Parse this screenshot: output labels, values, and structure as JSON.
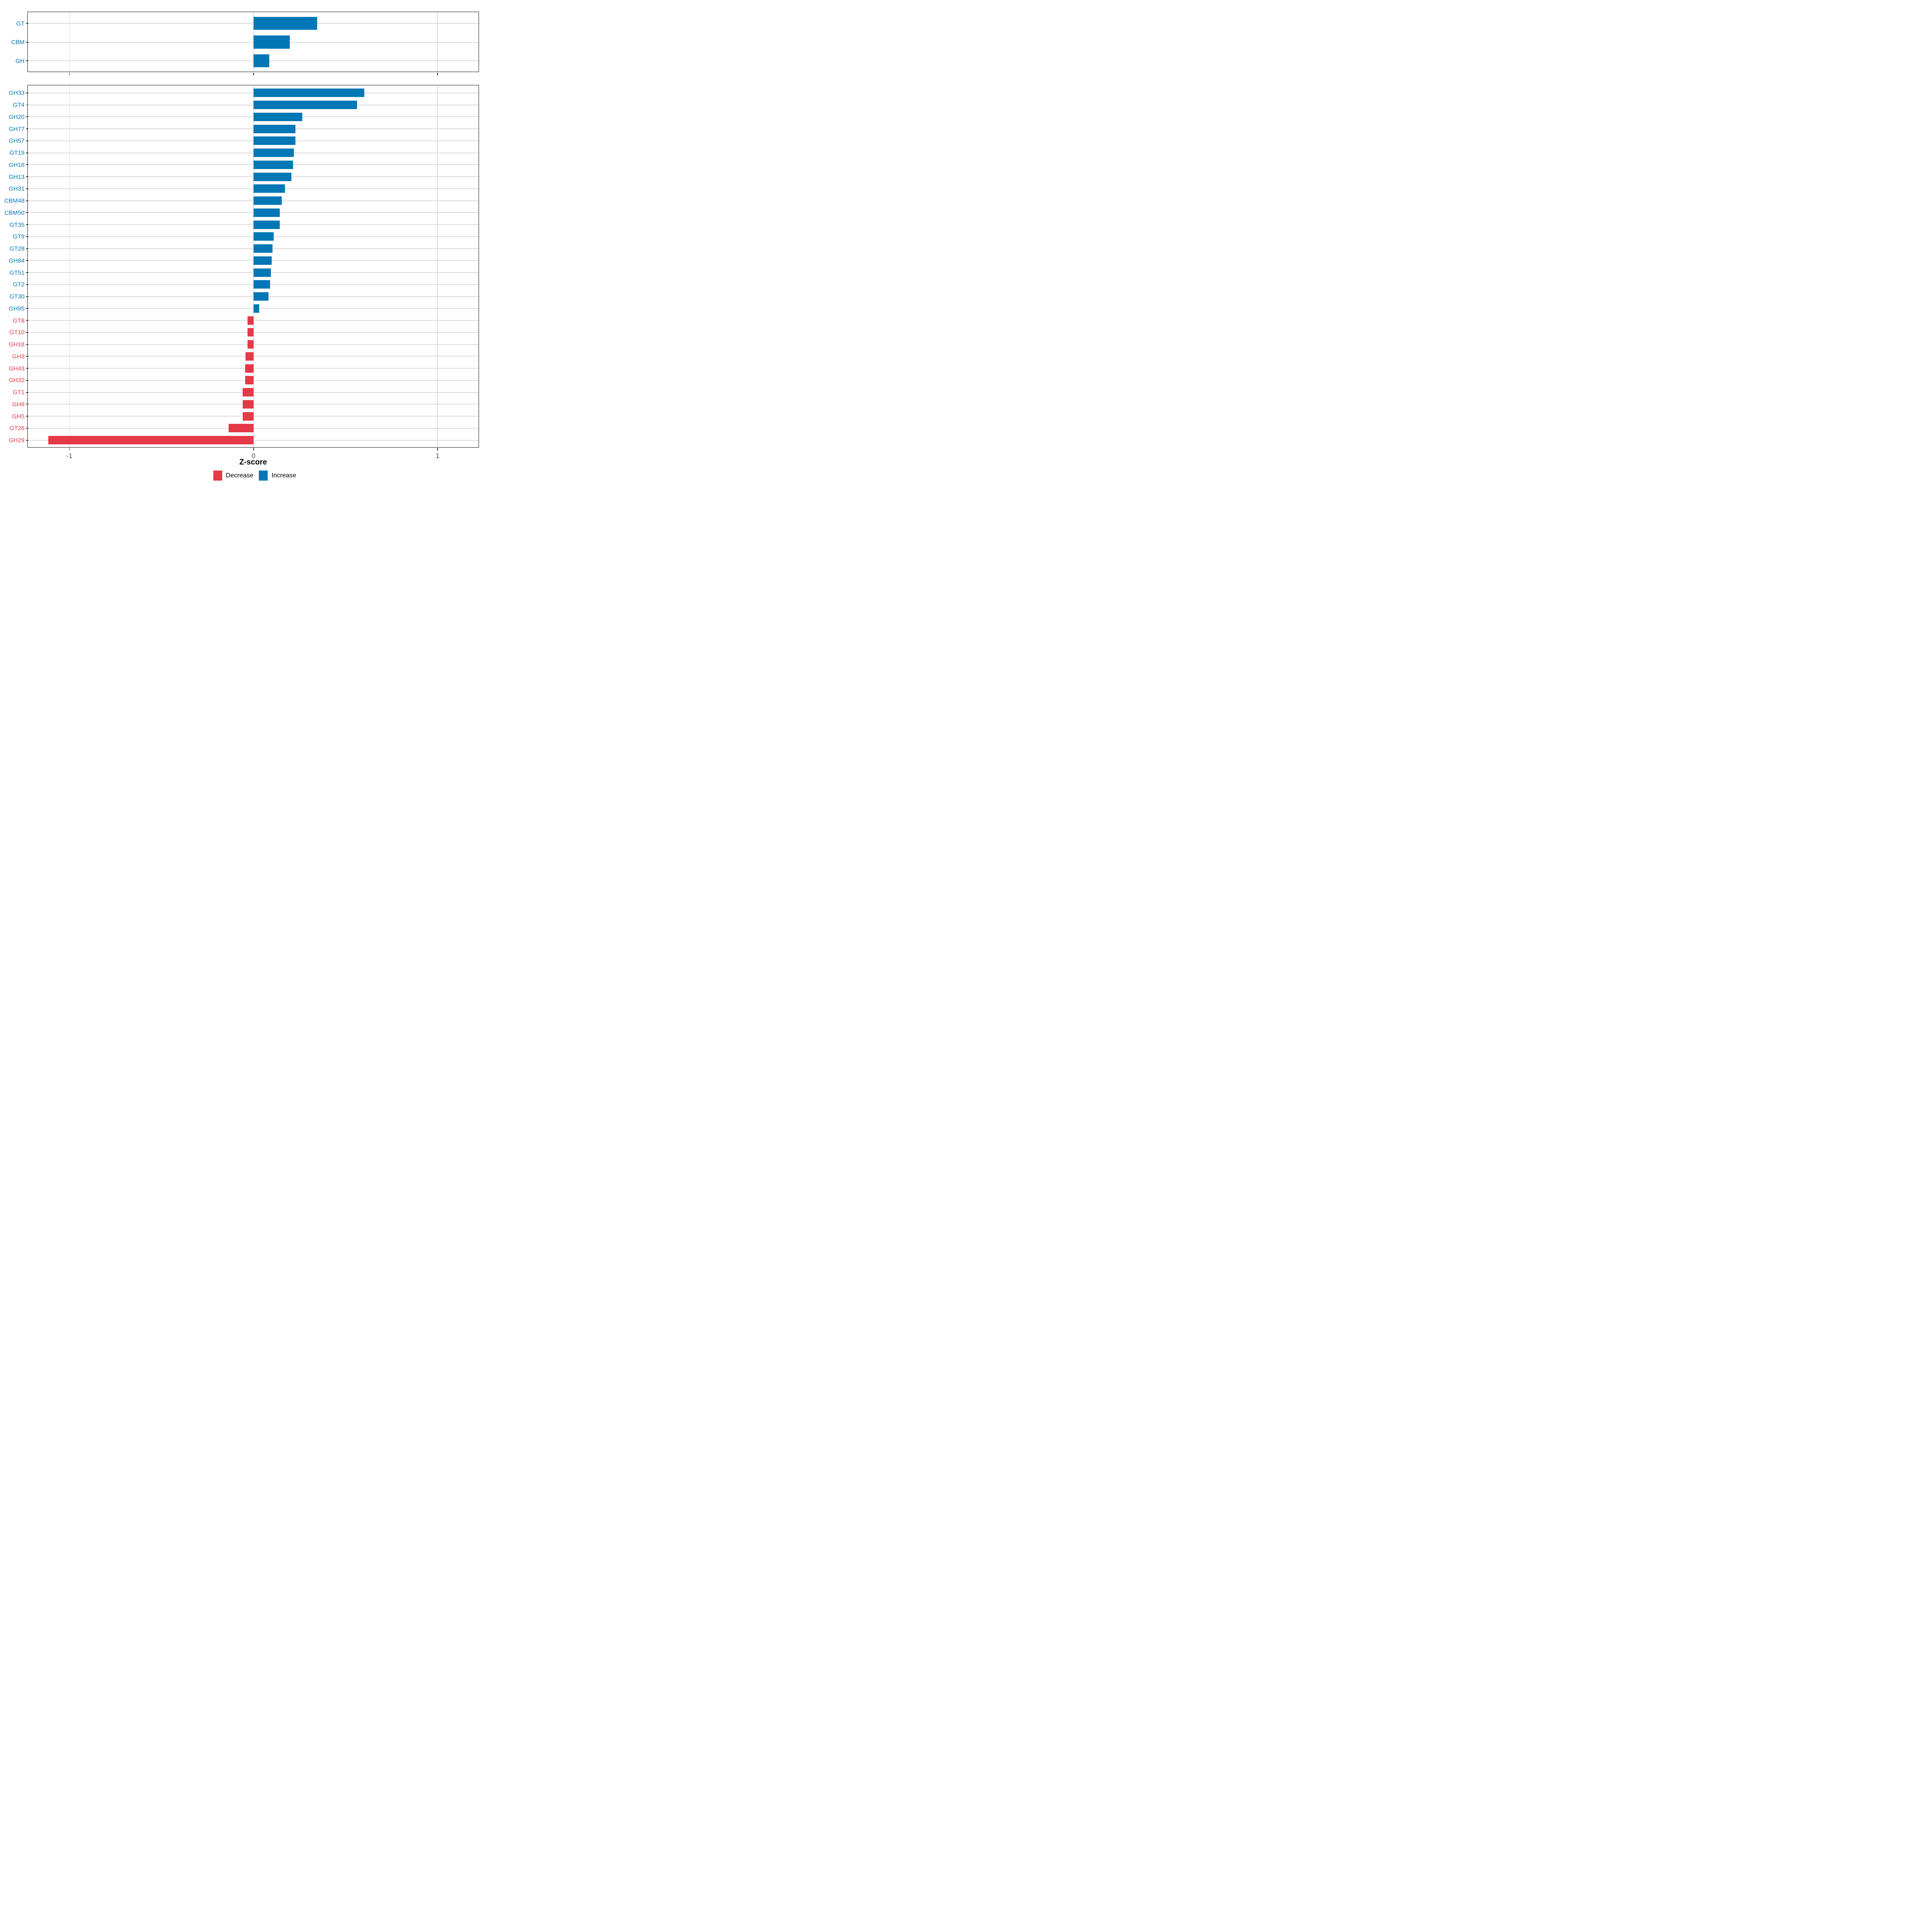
{
  "chart_data": {
    "type": "bar",
    "orientation": "horizontal",
    "xlabel": "Z-score",
    "xlim": [
      -1.225,
      1.225
    ],
    "x_ticks": [
      {
        "value": -1,
        "label": "-1"
      },
      {
        "value": 0,
        "label": "0"
      },
      {
        "value": 1,
        "label": "1"
      }
    ],
    "grid": true,
    "legend_position": "bottom",
    "colors": {
      "increase": "#0277b5",
      "decrease": "#e53948",
      "grid": "#dcdcdc",
      "axis_text": "#4d4d4d",
      "panel_border": "#141414"
    },
    "legend": {
      "entries": [
        {
          "label": "Decrease",
          "color": "#e53948"
        },
        {
          "label": "Increase",
          "color": "#0277b5"
        }
      ]
    },
    "panels": [
      {
        "name": "enzyme-class-summary",
        "categories": [
          "GT",
          "CBM",
          "GH"
        ],
        "groups": [
          "Increase",
          "Increase",
          "Increase"
        ],
        "series": [
          {
            "name": "Z-score",
            "values": [
              0.345,
              0.197,
              0.085
            ]
          }
        ]
      },
      {
        "name": "cazyme-families",
        "categories": [
          "GH33",
          "GT4",
          "GH20",
          "GH77",
          "GH57",
          "GT19",
          "GH16",
          "GH13",
          "GH31",
          "CBM48",
          "CBM50",
          "GT35",
          "GT9",
          "GT28",
          "GH84",
          "GT51",
          "GT2",
          "GT30",
          "GH95",
          "GT8",
          "GT10",
          "GH18",
          "GH3",
          "GH43",
          "GH32",
          "GT1",
          "GH9",
          "GH5",
          "GT26",
          "GH29"
        ],
        "groups": [
          "Increase",
          "Increase",
          "Increase",
          "Increase",
          "Increase",
          "Increase",
          "Increase",
          "Increase",
          "Increase",
          "Increase",
          "Increase",
          "Increase",
          "Increase",
          "Increase",
          "Increase",
          "Increase",
          "Increase",
          "Increase",
          "Increase",
          "Decrease",
          "Decrease",
          "Decrease",
          "Decrease",
          "Decrease",
          "Decrease",
          "Decrease",
          "Decrease",
          "Decrease",
          "Decrease",
          "Decrease"
        ],
        "series": [
          {
            "name": "Z-score",
            "values": [
              0.601,
              0.562,
              0.265,
              0.228,
              0.227,
              0.22,
              0.214,
              0.205,
              0.172,
              0.154,
              0.143,
              0.142,
              0.11,
              0.103,
              0.098,
              0.094,
              0.09,
              0.082,
              0.031,
              -0.032,
              -0.033,
              -0.033,
              -0.044,
              -0.045,
              -0.045,
              -0.058,
              -0.058,
              -0.058,
              -0.136,
              -1.115
            ]
          }
        ]
      }
    ]
  }
}
